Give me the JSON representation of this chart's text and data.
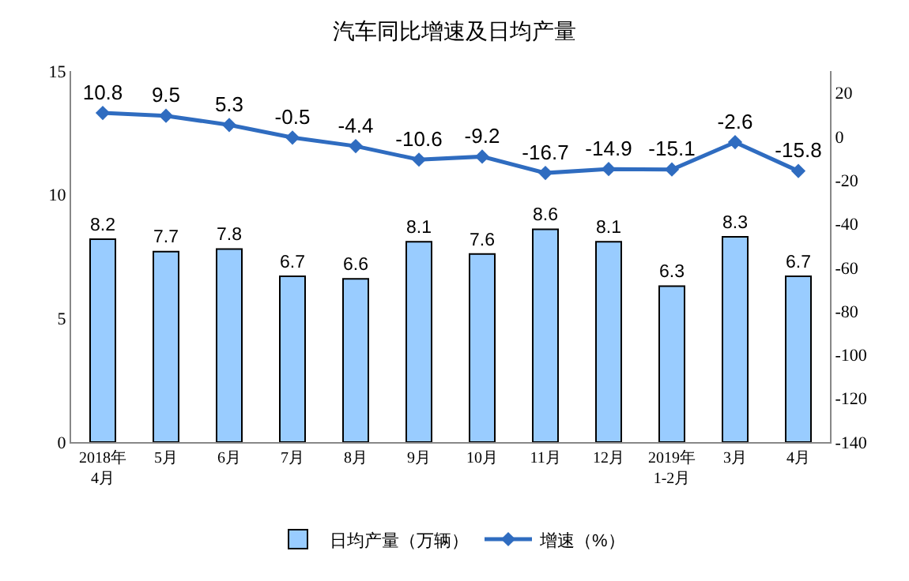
{
  "chart_data": {
    "type": "bar",
    "title": "汽车同比增速及日均产量",
    "categories": [
      "2018年\n4月",
      "5月",
      "6月",
      "7月",
      "8月",
      "9月",
      "10月",
      "11月",
      "12月",
      "2019年\n1-2月",
      "3月",
      "4月"
    ],
    "series": [
      {
        "name": "日均产量（万辆）",
        "color": "#99ccff",
        "values": [
          8.2,
          7.7,
          7.8,
          6.7,
          6.6,
          8.1,
          7.6,
          8.6,
          8.1,
          6.3,
          8.3,
          6.7
        ]
      },
      {
        "name": "增速（%）",
        "type": "line",
        "axis": "y2",
        "color": "#2f6cc0",
        "values": [
          10.8,
          9.5,
          5.3,
          -0.5,
          -4.4,
          -10.6,
          -9.2,
          -16.7,
          -14.9,
          -15.1,
          -2.6,
          -15.8
        ]
      }
    ],
    "ylim": [
      0,
      15
    ],
    "yticks": [
      0,
      5,
      10,
      15
    ],
    "y2lim": [
      -140,
      30
    ],
    "y2ticks": [
      -140,
      -120,
      -100,
      -80,
      -60,
      -40,
      -20,
      0,
      20
    ],
    "data_labels": true,
    "legend": "bottom",
    "marker": "diamond",
    "line_style": "solid"
  }
}
